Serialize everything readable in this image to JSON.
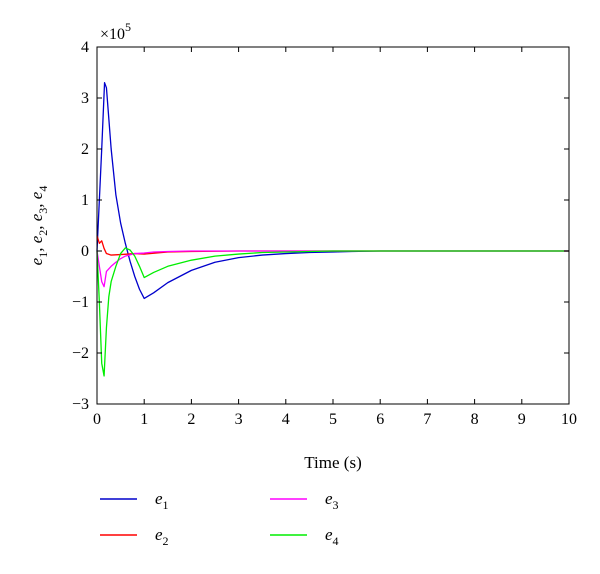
{
  "chart_data": {
    "type": "line",
    "xlabel": "Time (s)",
    "ylabel": {
      "parts": [
        "e",
        "1",
        ", e",
        "2",
        ", e",
        "3",
        ", e",
        "4"
      ]
    },
    "exponent_label": {
      "base": "×10",
      "power": "5"
    },
    "xlim": [
      0,
      10
    ],
    "ylim": [
      -3,
      4
    ],
    "xticks": [
      0,
      1,
      2,
      3,
      4,
      5,
      6,
      7,
      8,
      9,
      10
    ],
    "yticks": [
      -3,
      -2,
      -1,
      0,
      1,
      2,
      3,
      4
    ],
    "ytick_labels": [
      "−3",
      "−2",
      "−1",
      "0",
      "1",
      "2",
      "3",
      "4"
    ],
    "legend_position": "bottom",
    "series": [
      {
        "name": "e1",
        "label_main": "e",
        "label_sub": "1",
        "color": "#0000cc",
        "x": [
          0,
          0.1,
          0.16,
          0.2,
          0.25,
          0.3,
          0.4,
          0.5,
          0.6,
          0.7,
          0.8,
          0.9,
          1.0,
          1.2,
          1.5,
          2.0,
          2.5,
          3.0,
          3.5,
          4.0,
          4.5,
          5.0,
          5.4,
          6,
          7,
          8,
          9,
          10
        ],
        "y": [
          0,
          2.0,
          3.3,
          3.2,
          2.6,
          2.0,
          1.1,
          0.55,
          0.15,
          -0.2,
          -0.5,
          -0.75,
          -0.93,
          -0.82,
          -0.62,
          -0.38,
          -0.22,
          -0.13,
          -0.08,
          -0.05,
          -0.03,
          -0.02,
          -0.01,
          0,
          0,
          0,
          0,
          0
        ]
      },
      {
        "name": "e2",
        "label_main": "e",
        "label_sub": "2",
        "color": "#ff0000",
        "x": [
          0,
          0.05,
          0.1,
          0.15,
          0.2,
          0.3,
          0.5,
          0.8,
          1.0,
          1.5,
          2,
          3,
          4,
          5,
          6,
          7,
          8,
          9,
          10
        ],
        "y": [
          0.3,
          0.15,
          0.2,
          0.05,
          -0.05,
          -0.08,
          -0.07,
          -0.05,
          -0.06,
          -0.02,
          -0.01,
          0,
          0,
          0,
          0,
          0,
          0,
          0,
          0
        ]
      },
      {
        "name": "e3",
        "label_main": "e",
        "label_sub": "3",
        "color": "#ff00ff",
        "x": [
          0,
          0.05,
          0.1,
          0.15,
          0.2,
          0.3,
          0.4,
          0.5,
          0.6,
          0.8,
          1.0,
          1.2,
          1.5,
          2,
          3,
          4,
          5,
          6,
          7,
          8,
          9,
          10
        ],
        "y": [
          0,
          -0.3,
          -0.6,
          -0.7,
          -0.4,
          -0.3,
          -0.22,
          -0.15,
          -0.1,
          -0.05,
          -0.04,
          -0.02,
          -0.01,
          0,
          0,
          0,
          0,
          0,
          0,
          0,
          0,
          0
        ]
      },
      {
        "name": "e4",
        "label_main": "e",
        "label_sub": "4",
        "color": "#00ee00",
        "x": [
          0,
          0.05,
          0.1,
          0.15,
          0.2,
          0.25,
          0.3,
          0.4,
          0.5,
          0.6,
          0.7,
          0.8,
          0.9,
          1.0,
          1.2,
          1.5,
          2.0,
          2.5,
          3.0,
          3.5,
          4.0,
          4.5,
          5,
          6,
          7,
          8,
          9,
          10
        ],
        "y": [
          0,
          -1.0,
          -2.2,
          -2.45,
          -1.5,
          -0.9,
          -0.6,
          -0.3,
          -0.05,
          0.06,
          0.02,
          -0.1,
          -0.3,
          -0.52,
          -0.42,
          -0.3,
          -0.18,
          -0.1,
          -0.06,
          -0.03,
          -0.02,
          -0.01,
          0,
          0,
          0,
          0,
          0,
          0
        ]
      }
    ]
  }
}
